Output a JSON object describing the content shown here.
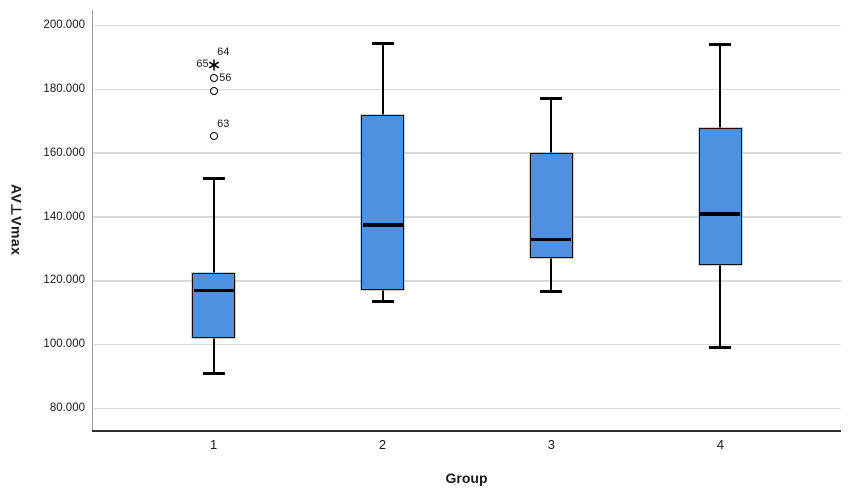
{
  "chart_data": {
    "type": "box",
    "title": "",
    "xlabel": "Group",
    "ylabel": "AV⊥Vmax",
    "grid": "horizontal-only",
    "legend": "none",
    "y_axis": {
      "min_value": 80,
      "max_value": 200,
      "tick_step": 20,
      "ticks": [
        {
          "value": 200,
          "label": "200.000"
        },
        {
          "value": 180,
          "label": "180.000"
        },
        {
          "value": 160,
          "label": "160.000"
        },
        {
          "value": 140,
          "label": "140.000"
        },
        {
          "value": 120,
          "label": "120.000"
        },
        {
          "value": 100,
          "label": "100.000"
        },
        {
          "value": 80,
          "label": "80.000"
        }
      ]
    },
    "categories": [
      "1",
      "2",
      "3",
      "4"
    ],
    "groups": [
      {
        "label": "1",
        "whisker_low": 91,
        "q1": 102,
        "median": 117,
        "q3": 122.5,
        "whisker_high": 152,
        "outliers": [
          {
            "shape": "circle",
            "value": 165.5,
            "labels": [
              {
                "text": "63",
                "side": "above-right"
              }
            ]
          },
          {
            "shape": "circle",
            "value": 179.5,
            "labels": []
          },
          {
            "shape": "circle",
            "value": 183.5,
            "labels": [
              {
                "text": "56",
                "side": "right"
              }
            ]
          },
          {
            "shape": "star",
            "value": 188,
            "labels": [
              {
                "text": "64",
                "side": "above-right"
              },
              {
                "text": "65",
                "side": "left"
              }
            ]
          }
        ]
      },
      {
        "label": "2",
        "whisker_low": 113.5,
        "q1": 117,
        "median": 137.5,
        "q3": 172,
        "whisker_high": 194.5,
        "outliers": []
      },
      {
        "label": "3",
        "whisker_low": 116.5,
        "q1": 127,
        "median": 133,
        "q3": 160,
        "whisker_high": 177,
        "outliers": []
      },
      {
        "label": "4",
        "whisker_low": 99,
        "q1": 125,
        "median": 141,
        "q3": 168,
        "whisker_high": 194,
        "outliers": []
      }
    ],
    "colors": {
      "box_fill": "#4f90e1",
      "box_border": "#0d0d0d",
      "median": "#000000",
      "whisker": "#000000",
      "gridline": "#d9d9d9",
      "x_axis_line": "#2e2e2e",
      "y_axis_line": "#9c9c9c",
      "text": "#1a1a1a",
      "background": "#ffffff"
    }
  }
}
